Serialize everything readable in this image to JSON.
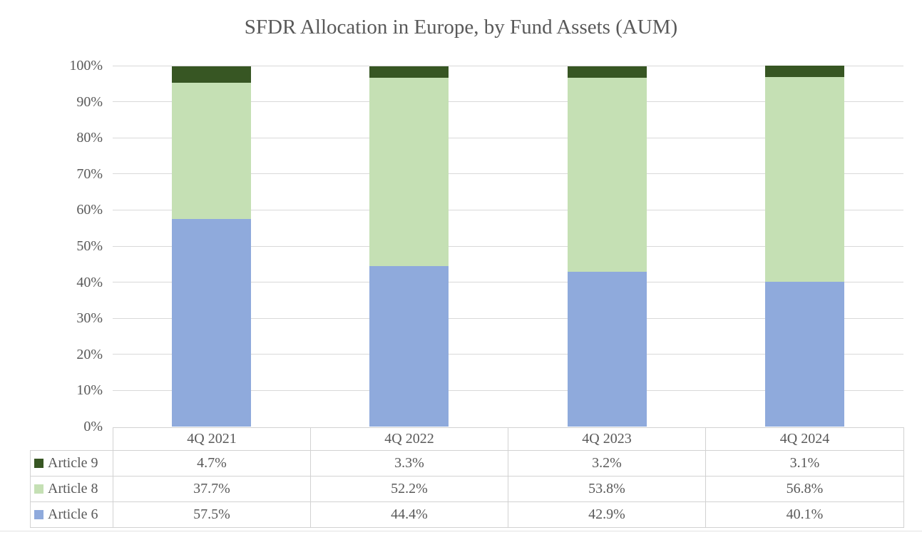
{
  "title": "SFDR Allocation in Europe, by Fund Assets (AUM)",
  "colors": {
    "article9": "#375623",
    "article8": "#c5e0b4",
    "article6": "#8faadc",
    "gridline": "#d9d9d9",
    "table_border": "#d2d2d2",
    "text": "#595959",
    "background": "#ffffff"
  },
  "chart_data": {
    "type": "bar",
    "stacked": true,
    "title": "SFDR Allocation in Europe, by Fund Assets (AUM)",
    "categories": [
      "4Q 2021",
      "4Q 2022",
      "4Q 2023",
      "4Q 2024"
    ],
    "series": [
      {
        "name": "Article 9",
        "color": "#375623",
        "values": [
          4.7,
          3.3,
          3.2,
          3.1
        ],
        "labels": [
          "4.7%",
          "3.3%",
          "3.2%",
          "3.1%"
        ]
      },
      {
        "name": "Article 8",
        "color": "#c5e0b4",
        "values": [
          37.7,
          52.2,
          53.8,
          56.8
        ],
        "labels": [
          "37.7%",
          "52.2%",
          "53.8%",
          "56.8%"
        ]
      },
      {
        "name": "Article 6",
        "color": "#8faadc",
        "values": [
          57.5,
          44.4,
          42.9,
          40.1
        ],
        "labels": [
          "57.5%",
          "44.4%",
          "42.9%",
          "40.1%"
        ]
      }
    ],
    "stack_order_bottom_to_top": [
      "Article 6",
      "Article 8",
      "Article 9"
    ],
    "y_axis": {
      "min": 0,
      "max": 100,
      "ticks": [
        "0%",
        "10%",
        "20%",
        "30%",
        "40%",
        "50%",
        "60%",
        "70%",
        "80%",
        "90%",
        "100%"
      ]
    },
    "x_axis_label": "",
    "y_axis_label": "",
    "grid": true,
    "legend_position": "data-table-left",
    "data_table_shown": true
  }
}
